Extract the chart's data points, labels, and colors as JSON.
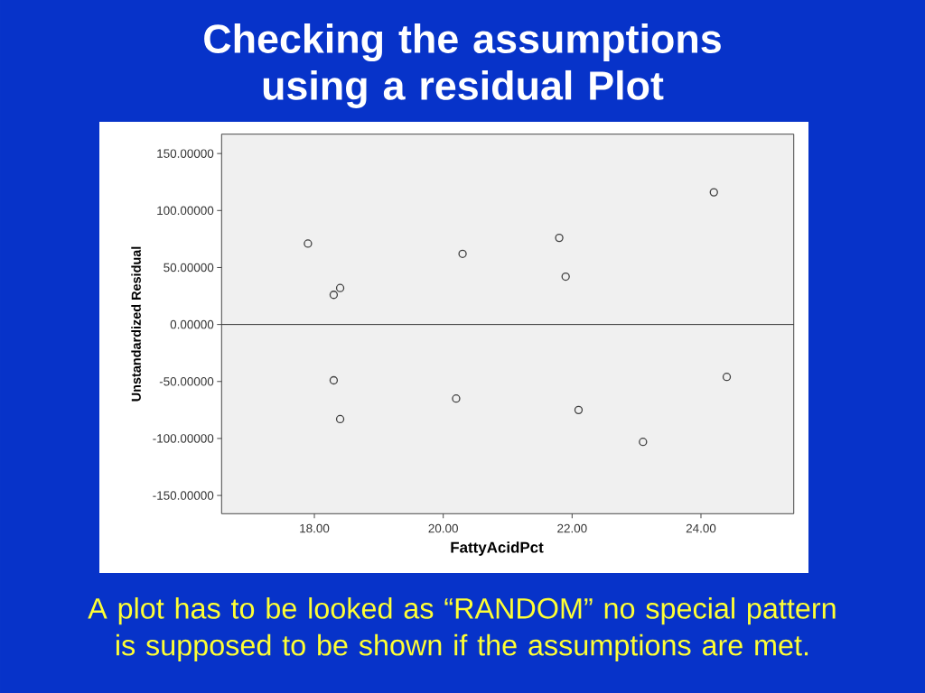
{
  "chart_data": {
    "type": "scatter",
    "title": "Checking the assumptions using a residual Plot",
    "xlabel": "FattyAcidPct",
    "ylabel": "Unstandardized Residual",
    "x": [
      17.9,
      18.3,
      18.4,
      18.3,
      18.4,
      20.2,
      20.3,
      21.8,
      21.9,
      22.1,
      23.1,
      24.2,
      24.4
    ],
    "values": [
      71,
      26,
      32,
      -49,
      -83,
      -65,
      62,
      76,
      42,
      -75,
      -103,
      116,
      -46
    ],
    "color": "#404040",
    "marker": "circle",
    "xlim": [
      16.56,
      25.44
    ],
    "ylim": [
      -166,
      167
    ],
    "xticks": [
      {
        "value": 18,
        "label": "18.00"
      },
      {
        "value": 20,
        "label": "20.00"
      },
      {
        "value": 22,
        "label": "22.00"
      },
      {
        "value": 24,
        "label": "24.00"
      }
    ],
    "yticks": [
      {
        "value": -150,
        "label": "-150.00000"
      },
      {
        "value": -100,
        "label": "-100.00000"
      },
      {
        "value": -50,
        "label": "-50.00000"
      },
      {
        "value": 0,
        "label": "0.00000"
      },
      {
        "value": 50,
        "label": "50.00000"
      },
      {
        "value": 100,
        "label": "100.00000"
      },
      {
        "value": 150,
        "label": "150.00000"
      }
    ],
    "ref_lines": [
      {
        "axis": "y",
        "value": 0,
        "color": "#333333"
      }
    ],
    "annotations": [
      "A plot has to be looked as “RANDOM” no special pattern is supposed to be shown if the assumptions are met."
    ]
  }
}
